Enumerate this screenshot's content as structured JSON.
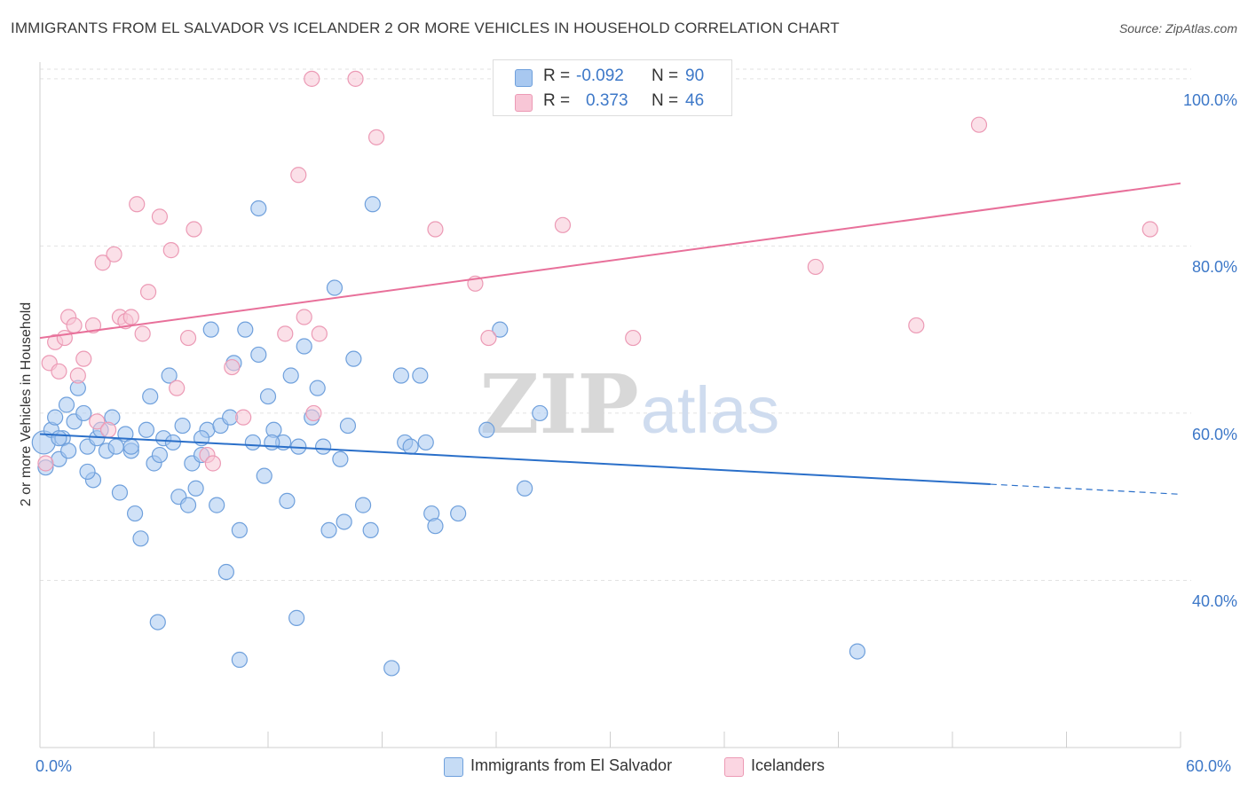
{
  "title": "IMMIGRANTS FROM EL SALVADOR VS ICELANDER 2 OR MORE VEHICLES IN HOUSEHOLD CORRELATION CHART",
  "source": "Source: ZipAtlas.com",
  "watermark": {
    "zip": "ZIP",
    "atlas": "atlas"
  },
  "stats": [
    {
      "r_label": "R = ",
      "r_value": "-0.092",
      "n_label": "N = ",
      "n_value": "90",
      "color": "#a8c8f0"
    },
    {
      "r_label": "R = ",
      "r_value": "0.373",
      "n_label": "N = ",
      "n_value": "46",
      "color": "#f5b8cb"
    }
  ],
  "legend": [
    {
      "label": "Immigrants from El Salvador",
      "color": "#a8c8f0"
    },
    {
      "label": "Icelanders",
      "color": "#f5b8cb"
    }
  ],
  "colors": {
    "blue_fill": "#a8c8f0",
    "blue_stroke": "#6fa0dc",
    "blue_line": "#2a6fc9",
    "pink_fill": "#f8c6d6",
    "pink_stroke": "#ec9ab5",
    "pink_line": "#e8709a",
    "axis_text": "#3d78c8"
  },
  "chart_data": {
    "type": "scatter",
    "title": "IMMIGRANTS FROM EL SALVADOR VS ICELANDER 2 OR MORE VEHICLES IN HOUSEHOLD CORRELATION CHART",
    "xlabel": "",
    "ylabel": "2 or more Vehicles in Household",
    "xlim": [
      0,
      60
    ],
    "ylim": [
      20,
      102
    ],
    "x_tick_labels": [
      "0.0%",
      "60.0%"
    ],
    "y_ticks": [
      40,
      60,
      80,
      100
    ],
    "y_tick_labels": [
      "40.0%",
      "60.0%",
      "80.0%",
      "100.0%"
    ],
    "grid": true,
    "legend_position": "bottom",
    "series": [
      {
        "name": "Immigrants from El Salvador",
        "r": -0.092,
        "n": 90,
        "trend": {
          "x": [
            0,
            50
          ],
          "y": [
            57.5,
            51.5
          ],
          "dashed_extension_to_x": 60
        },
        "points": [
          [
            0.2,
            56.5
          ],
          [
            0.3,
            53.5
          ],
          [
            0.6,
            58
          ],
          [
            0.8,
            59.5
          ],
          [
            1.0,
            54.5
          ],
          [
            1.2,
            57
          ],
          [
            1.4,
            61
          ],
          [
            1.5,
            55.5
          ],
          [
            1.8,
            59
          ],
          [
            2.0,
            63
          ],
          [
            2.3,
            60
          ],
          [
            2.5,
            56
          ],
          [
            2.8,
            52
          ],
          [
            3.0,
            57
          ],
          [
            3.2,
            58
          ],
          [
            3.5,
            55.5
          ],
          [
            3.8,
            59.5
          ],
          [
            4.0,
            56
          ],
          [
            4.2,
            50.5
          ],
          [
            4.5,
            57.5
          ],
          [
            4.8,
            55.5
          ],
          [
            5.0,
            48
          ],
          [
            5.3,
            45
          ],
          [
            5.6,
            58
          ],
          [
            5.8,
            62
          ],
          [
            6.0,
            54
          ],
          [
            6.3,
            55
          ],
          [
            6.5,
            57
          ],
          [
            6.8,
            64.5
          ],
          [
            7.0,
            56.5
          ],
          [
            7.3,
            50
          ],
          [
            7.5,
            58.5
          ],
          [
            7.8,
            49
          ],
          [
            8.0,
            54
          ],
          [
            8.2,
            51
          ],
          [
            8.5,
            55
          ],
          [
            8.8,
            58
          ],
          [
            9.0,
            70
          ],
          [
            9.3,
            49
          ],
          [
            9.5,
            58.5
          ],
          [
            9.8,
            41
          ],
          [
            10.0,
            59.5
          ],
          [
            10.2,
            66
          ],
          [
            10.5,
            46
          ],
          [
            10.8,
            70
          ],
          [
            11.2,
            56.5
          ],
          [
            11.5,
            67
          ],
          [
            11.8,
            52.5
          ],
          [
            12.0,
            62
          ],
          [
            12.3,
            58
          ],
          [
            12.8,
            56.5
          ],
          [
            13.0,
            49.5
          ],
          [
            13.2,
            64.5
          ],
          [
            13.6,
            56
          ],
          [
            13.9,
            68
          ],
          [
            14.3,
            59.5
          ],
          [
            14.6,
            63
          ],
          [
            14.9,
            56
          ],
          [
            15.2,
            46
          ],
          [
            15.5,
            75
          ],
          [
            15.8,
            54.5
          ],
          [
            16.2,
            58.5
          ],
          [
            16.5,
            66.5
          ],
          [
            17.0,
            49
          ],
          [
            17.4,
            46
          ],
          [
            19.0,
            64.5
          ],
          [
            19.2,
            56.5
          ],
          [
            19.5,
            56
          ],
          [
            20.0,
            64.5
          ],
          [
            20.3,
            56.5
          ],
          [
            20.6,
            48
          ],
          [
            20.8,
            46.5
          ],
          [
            23.5,
            58
          ],
          [
            24.2,
            70
          ],
          [
            25.5,
            51
          ],
          [
            26.3,
            60
          ],
          [
            11.5,
            84.5
          ],
          [
            17.5,
            85
          ],
          [
            6.2,
            35
          ],
          [
            10.5,
            30.5
          ],
          [
            13.5,
            35.5
          ],
          [
            18.5,
            29.5
          ],
          [
            43.0,
            31.5
          ],
          [
            1.0,
            57
          ],
          [
            2.5,
            53
          ],
          [
            4.8,
            56
          ],
          [
            8.5,
            57
          ],
          [
            12.2,
            56.5
          ],
          [
            16.0,
            47
          ],
          [
            22.0,
            48
          ]
        ]
      },
      {
        "name": "Icelanders",
        "r": 0.373,
        "n": 46,
        "trend": {
          "x": [
            0,
            60
          ],
          "y": [
            69,
            87.5
          ]
        },
        "points": [
          [
            0.3,
            54
          ],
          [
            0.5,
            66
          ],
          [
            0.8,
            68.5
          ],
          [
            1.0,
            65
          ],
          [
            1.3,
            69
          ],
          [
            1.5,
            71.5
          ],
          [
            1.8,
            70.5
          ],
          [
            2.0,
            64.5
          ],
          [
            2.3,
            66.5
          ],
          [
            2.8,
            70.5
          ],
          [
            3.0,
            59
          ],
          [
            3.3,
            78
          ],
          [
            3.6,
            58
          ],
          [
            3.9,
            79
          ],
          [
            4.2,
            71.5
          ],
          [
            4.5,
            71
          ],
          [
            4.8,
            71.5
          ],
          [
            5.1,
            85
          ],
          [
            5.4,
            69.5
          ],
          [
            5.7,
            74.5
          ],
          [
            6.3,
            83.5
          ],
          [
            6.9,
            79.5
          ],
          [
            7.2,
            63
          ],
          [
            7.8,
            69
          ],
          [
            8.1,
            82
          ],
          [
            8.8,
            55
          ],
          [
            9.1,
            54
          ],
          [
            10.1,
            65.5
          ],
          [
            10.7,
            59.5
          ],
          [
            12.9,
            69.5
          ],
          [
            13.6,
            88.5
          ],
          [
            13.9,
            71.5
          ],
          [
            14.4,
            60
          ],
          [
            14.7,
            69.5
          ],
          [
            14.3,
            100
          ],
          [
            16.6,
            100
          ],
          [
            17.7,
            93
          ],
          [
            20.8,
            82
          ],
          [
            22.9,
            75.5
          ],
          [
            23.6,
            69
          ],
          [
            27.5,
            82.5
          ],
          [
            31.2,
            69
          ],
          [
            40.8,
            77.5
          ],
          [
            46.1,
            70.5
          ],
          [
            49.4,
            94.5
          ],
          [
            58.4,
            82
          ]
        ]
      }
    ]
  }
}
